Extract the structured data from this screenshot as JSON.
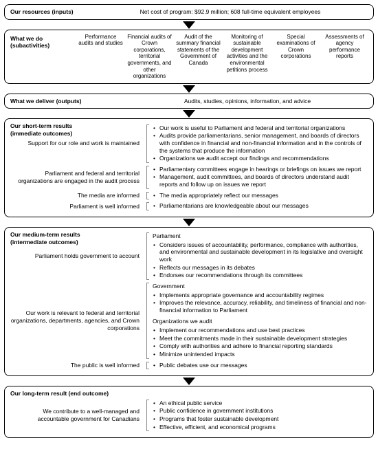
{
  "inputs": {
    "label": "Our resources (inputs)",
    "text": "Net cost of program: $92.9 million; 608 full-time equivalent employees"
  },
  "subactivities": {
    "label_l1": "What we do",
    "label_l2": "(subactivities)",
    "cols": [
      "Performance audits and studies",
      "Financial audits of Crown corporations, territorial governments, and other organizations",
      "Audit of the summary financial statements of the Government of Canada",
      "Monitoring of sustainable development activities and the environmental petitions process",
      "Special examinations of Crown corporations",
      "Assessments of agency performance reports"
    ]
  },
  "outputs": {
    "label": "What we deliver (outputs)",
    "text": "Audits, studies, opinions, information, and advice"
  },
  "short": {
    "title_l1": "Our short-term results",
    "title_l2": "(immediate outcomes)",
    "rows": [
      {
        "left": "Support for our role and work is maintained",
        "bullets": [
          "Our work is useful to Parliament and federal and territorial organizations",
          "Audits provide parliamentarians, senior management, and boards of directors with confidence in financial and non-financial information and in the controls of the systems that produce the information",
          "Organizations we audit accept our findings and recommendations"
        ]
      },
      {
        "left": "Parliament and federal and territorial organizations are engaged in the audit process",
        "bullets": [
          "Parliamentary committees engage in hearings or briefings on issues we report",
          "Management, audit committees, and boards of directors understand audit reports and follow up on issues we report"
        ]
      },
      {
        "left": "The media are informed",
        "bullets": [
          "The media appropriately reflect our messages"
        ]
      },
      {
        "left": "Parliament is well informed",
        "bullets": [
          "Parliamentarians are knowledgeable about our messages"
        ]
      }
    ]
  },
  "medium": {
    "title_l1": "Our medium-term results",
    "title_l2": "(intermediate outcomes)",
    "rows": [
      {
        "left": "Parliament holds government to account",
        "subhead": "Parliament",
        "bullets": [
          "Considers issues of accountability, performance, compliance with authorities, and environmental and sustainable development in its legislative and oversight work",
          "Reflects our messages in its debates",
          "Endorses our recommendations through its committees"
        ]
      },
      {
        "left": "Our work is relevant to federal and territorial organizations, departments, agencies, and Crown corporations",
        "groups": [
          {
            "subhead": "Government",
            "bullets": [
              "Implements appropriate governance and accountability regimes",
              "Improves the relevance, accuracy, reliability, and timeliness of financial and non-financial information to Parliament"
            ]
          },
          {
            "subhead": "Organizations we audit",
            "bullets": [
              "Implement our recommendations and use best practices",
              "Meet the commitments made in their sustainable development strategies",
              "Comply with authorities and adhere to financial reporting standards",
              "Minimize unintended impacts"
            ]
          }
        ]
      },
      {
        "left": "The public is well informed",
        "bullets": [
          "Public debates use our messages"
        ]
      }
    ]
  },
  "long": {
    "title": "Our long-term result (end outcome)",
    "left": "We contribute to a well-managed and accountable government for Canadians",
    "bullets": [
      "An ethical public service",
      "Public confidence in government institutions",
      "Programs that foster sustainable development",
      "Effective, efficient, and economical programs"
    ]
  }
}
